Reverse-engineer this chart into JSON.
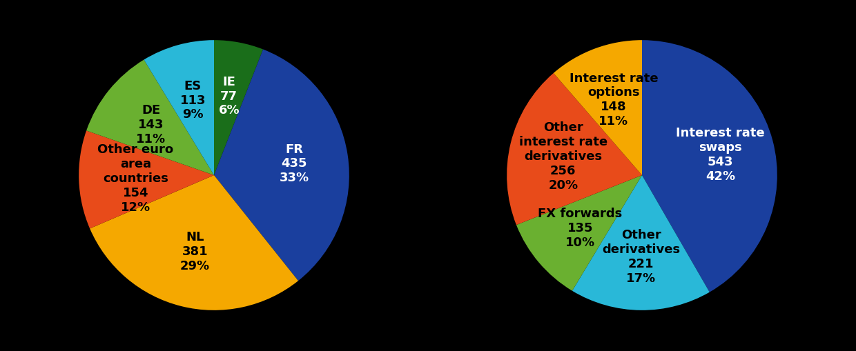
{
  "chart1": {
    "labels": [
      "IE\n77\n6%",
      "FR\n435\n33%",
      "NL\n381\n29%",
      "Other euro\narea\ncountries\n154\n12%",
      "DE\n143\n11%",
      "ES\n113\n9%"
    ],
    "values": [
      77,
      435,
      381,
      154,
      143,
      113
    ],
    "colors": [
      "#1a6e1a",
      "#1a3f9e",
      "#f5a800",
      "#e84b1a",
      "#6ab030",
      "#29b8d8"
    ],
    "text_colors": [
      "white",
      "white",
      "black",
      "black",
      "black",
      "black"
    ],
    "label_r": [
      0.6,
      0.6,
      0.58,
      0.58,
      0.6,
      0.58
    ],
    "startangle": 90
  },
  "chart2": {
    "labels": [
      "Interest rate\nswaps\n543\n42%",
      "Other\nderivatives\n221\n17%",
      "FX forwards\n135\n10%",
      "Other\ninterest rate\nderivatives\n256\n20%",
      "Interest rate\noptions\n148\n11%"
    ],
    "values": [
      543,
      221,
      135,
      256,
      148
    ],
    "colors": [
      "#1a3f9e",
      "#29b8d8",
      "#6ab030",
      "#e84b1a",
      "#f5a800"
    ],
    "text_colors": [
      "white",
      "black",
      "black",
      "black",
      "black"
    ],
    "label_r": [
      0.6,
      0.6,
      0.6,
      0.6,
      0.6
    ],
    "startangle": 90
  },
  "background_color": "#000000",
  "fontsize": 13
}
